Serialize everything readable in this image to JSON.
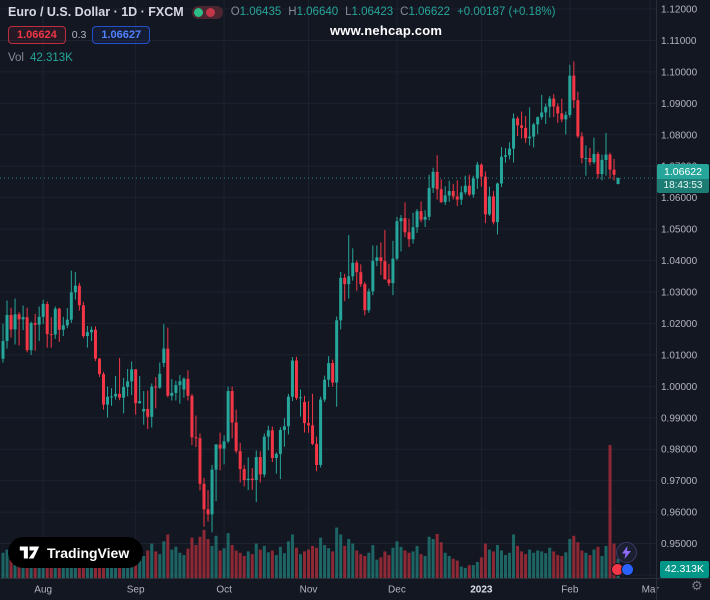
{
  "header": {
    "symbol_title": "Euro / U.S. Dollar · 1D · FXCM",
    "ohlc": {
      "o_label": "O",
      "o": "1.06435",
      "h_label": "H",
      "h": "1.06640",
      "l_label": "L",
      "l": "1.06423",
      "c_label": "C",
      "c": "1.06622",
      "change": "+0.00187 (+0.18%)"
    },
    "sell_price": "1.06624",
    "spread": "0.3",
    "buy_price": "1.06627",
    "vol_label": "Vol",
    "vol_value": "42.313K"
  },
  "watermark": "www.nehcap.com",
  "logo_text": "TradingView",
  "price_label": {
    "price": "1.06622",
    "countdown": "18:43:53"
  },
  "volume_axis_label": "42.313K",
  "icons": [
    "tradingview-logo-icon",
    "lightning-icon",
    "sell-bubble-icon",
    "buy-bubble-icon",
    "gear-icon"
  ],
  "colors": {
    "background": "#131722",
    "grid": "#1c2230",
    "axis_text": "#b2b5be",
    "axis_text_bright": "#dde1e8",
    "border": "#2a2e39",
    "up": "#26a69a",
    "down": "#f23645",
    "vol_up": "rgba(38,166,154,0.55)",
    "vol_down": "rgba(242,54,69,0.55)",
    "price_label_bg": "#26a69a",
    "vol_label_bg": "#009688",
    "sell": "#f23645",
    "buy": "#2962ff"
  },
  "chart_data": {
    "type": "candlestick",
    "title": "Euro / U.S. Dollar",
    "exchange": "FXCM",
    "interval": "1D",
    "last_close": 1.06622,
    "y_axis": {
      "min": 0.94,
      "max": 1.12,
      "tick_step": 0.01,
      "tick_decimals": 5
    },
    "x_ticks": [
      {
        "label": "Aug",
        "index": 10
      },
      {
        "label": "Sep",
        "index": 33
      },
      {
        "label": "Oct",
        "index": 55
      },
      {
        "label": "Nov",
        "index": 76
      },
      {
        "label": "Dec",
        "index": 98
      },
      {
        "label": "2023",
        "index": 119,
        "year": true
      },
      {
        "label": "Feb",
        "index": 141
      },
      {
        "label": "Mar",
        "index": 161
      }
    ],
    "volume_unit": "K",
    "volume_scale_max": 290,
    "candles": [
      [
        1.0088,
        1.0199,
        1.0075,
        1.0144
      ],
      [
        1.0144,
        1.0273,
        1.012,
        1.0227
      ],
      [
        1.0227,
        1.025,
        1.0155,
        1.0181
      ],
      [
        1.0181,
        1.0279,
        1.0133,
        1.0229
      ],
      [
        1.0229,
        1.0236,
        1.013,
        1.0213
      ],
      [
        1.0213,
        1.0257,
        1.0179,
        1.022
      ],
      [
        1.022,
        1.025,
        1.0108,
        1.0115
      ],
      [
        1.0115,
        1.0206,
        1.01,
        1.0201
      ],
      [
        1.0201,
        1.023,
        1.0113,
        1.0196
      ],
      [
        1.0196,
        1.0254,
        1.0144,
        1.0221
      ],
      [
        1.0221,
        1.0275,
        1.0198,
        1.0262
      ],
      [
        1.0262,
        1.027,
        1.0123,
        1.0166
      ],
      [
        1.0166,
        1.022,
        1.0123,
        1.0165
      ],
      [
        1.0165,
        1.0254,
        1.0151,
        1.0247
      ],
      [
        1.0247,
        1.025,
        1.0141,
        1.018
      ],
      [
        1.018,
        1.0221,
        1.016,
        1.0194
      ],
      [
        1.0194,
        1.0249,
        1.0185,
        1.0212
      ],
      [
        1.0212,
        1.0368,
        1.0202,
        1.0299
      ],
      [
        1.0299,
        1.0364,
        1.0276,
        1.032
      ],
      [
        1.032,
        1.0329,
        1.0241,
        1.0258
      ],
      [
        1.0258,
        1.0269,
        1.0154,
        1.016
      ],
      [
        1.016,
        1.0192,
        1.0123,
        1.0172
      ],
      [
        1.0172,
        1.019,
        1.0144,
        1.018
      ],
      [
        1.018,
        1.0191,
        1.008,
        1.0088
      ],
      [
        1.0088,
        1.009,
        1.003,
        1.0039
      ],
      [
        1.0039,
        1.0046,
        0.9926,
        0.9942
      ],
      [
        0.9942,
        0.9999,
        0.9901,
        0.9967
      ],
      [
        0.9967,
        0.9994,
        0.9938,
        0.9968
      ],
      [
        0.9968,
        1.0033,
        0.9958,
        0.9976
      ],
      [
        0.9976,
        1.009,
        0.9956,
        0.9964
      ],
      [
        0.9964,
        1.0027,
        0.9914,
        0.9998
      ],
      [
        0.9998,
        1.0055,
        0.9968,
        1.0016
      ],
      [
        1.0016,
        1.0079,
        0.9972,
        1.0054
      ],
      [
        1.0054,
        1.0055,
        0.991,
        0.9946
      ],
      [
        0.9946,
        1.0033,
        0.9945,
        0.9953
      ],
      [
        0.992,
        0.9985,
        0.9878,
        0.9928
      ],
      [
        0.9928,
        0.9986,
        0.9864,
        0.9903
      ],
      [
        0.9903,
        1.0009,
        0.9869,
        0.9999
      ],
      [
        0.9999,
        1.0029,
        0.993,
        0.9996
      ],
      [
        0.9996,
        1.0076,
        0.9992,
        1.004
      ],
      [
        1.0074,
        1.0198,
        1.0061,
        1.012
      ],
      [
        1.012,
        1.0187,
        0.9965,
        0.997
      ],
      [
        0.997,
        1.0023,
        0.9955,
        0.9979
      ],
      [
        0.9979,
        1.0018,
        0.9955,
        1.0004
      ],
      [
        1.0004,
        1.0036,
        0.9945,
        1.0016
      ],
      [
        0.999,
        1.0029,
        0.9964,
        1.0024
      ],
      [
        1.0024,
        1.0051,
        0.9955,
        0.997
      ],
      [
        0.997,
        0.9976,
        0.9813,
        0.9838
      ],
      [
        0.9838,
        0.9907,
        0.9807,
        0.9835
      ],
      [
        0.9835,
        0.985,
        0.9669,
        0.969
      ],
      [
        0.969,
        0.9709,
        0.9554,
        0.9609
      ],
      [
        0.9609,
        0.967,
        0.957,
        0.9593
      ],
      [
        0.9593,
        0.975,
        0.9536,
        0.9735
      ],
      [
        0.9735,
        0.9816,
        0.9635,
        0.9815
      ],
      [
        0.9815,
        0.9853,
        0.9733,
        0.9802
      ],
      [
        0.9802,
        0.9844,
        0.9752,
        0.9825
      ],
      [
        0.9825,
        0.9999,
        0.9819,
        0.9985
      ],
      [
        0.9985,
        0.9999,
        0.9835,
        0.9885
      ],
      [
        0.9885,
        0.9926,
        0.9787,
        0.9794
      ],
      [
        0.9794,
        0.982,
        0.9694,
        0.9737
      ],
      [
        0.9737,
        0.975,
        0.9682,
        0.9702
      ],
      [
        0.9702,
        0.9774,
        0.967,
        0.9706
      ],
      [
        0.9706,
        0.974,
        0.9671,
        0.9702
      ],
      [
        0.9702,
        0.9796,
        0.9632,
        0.9775
      ],
      [
        0.9775,
        0.9794,
        0.9694,
        0.972
      ],
      [
        0.972,
        0.985,
        0.9711,
        0.984
      ],
      [
        0.984,
        0.9875,
        0.9797,
        0.986
      ],
      [
        0.986,
        0.9872,
        0.9759,
        0.9772
      ],
      [
        0.9772,
        0.979,
        0.9722,
        0.9785
      ],
      [
        0.9785,
        0.987,
        0.9705,
        0.9861
      ],
      [
        0.9861,
        0.9899,
        0.9808,
        0.9873
      ],
      [
        0.9873,
        0.9976,
        0.9847,
        0.9967
      ],
      [
        0.9967,
        1.0093,
        0.9953,
        1.0082
      ],
      [
        1.0082,
        1.0094,
        0.9957,
        0.9963
      ],
      [
        0.9963,
        0.999,
        0.9904,
        0.9965
      ],
      [
        0.995,
        0.997,
        0.9853,
        0.9883
      ],
      [
        0.9883,
        0.9953,
        0.9852,
        0.9876
      ],
      [
        0.9876,
        0.9976,
        0.9813,
        0.9817
      ],
      [
        0.9817,
        0.984,
        0.973,
        0.975
      ],
      [
        0.975,
        0.9967,
        0.9742,
        0.9958
      ],
      [
        0.9958,
        1.0034,
        0.995,
        1.0021
      ],
      [
        1.0021,
        1.0096,
        0.9998,
        1.0074
      ],
      [
        1.0074,
        1.0085,
        0.9999,
        1.0012
      ],
      [
        1.0012,
        1.0222,
        0.9935,
        1.021
      ],
      [
        1.021,
        1.0364,
        1.0181,
        1.0345
      ],
      [
        1.0345,
        1.0358,
        1.0271,
        1.0325
      ],
      [
        1.0325,
        1.0481,
        1.0279,
        1.035
      ],
      [
        1.035,
        1.0439,
        1.0336,
        1.0393
      ],
      [
        1.0393,
        1.04,
        1.0304,
        1.0363
      ],
      [
        1.0363,
        1.0388,
        1.0316,
        1.0325
      ],
      [
        1.0325,
        1.0332,
        1.0226,
        1.0242
      ],
      [
        1.0242,
        1.0311,
        1.0234,
        1.0302
      ],
      [
        1.0302,
        1.0448,
        1.029,
        1.0399
      ],
      [
        1.0399,
        1.0448,
        1.0382,
        1.041
      ],
      [
        1.041,
        1.0458,
        1.0354,
        1.0398
      ],
      [
        1.0398,
        1.0497,
        1.034,
        1.034
      ],
      [
        1.034,
        1.039,
        1.0319,
        1.0328
      ],
      [
        1.0328,
        1.0463,
        1.029,
        1.0406
      ],
      [
        1.0406,
        1.0539,
        1.04,
        1.0525
      ],
      [
        1.0525,
        1.0545,
        1.0429,
        1.0535
      ],
      [
        1.0535,
        1.0585,
        1.0475,
        1.049
      ],
      [
        1.049,
        1.0533,
        1.0443,
        1.0468
      ],
      [
        1.0468,
        1.0552,
        1.0454,
        1.0506
      ],
      [
        1.0506,
        1.0564,
        1.0488,
        1.0557
      ],
      [
        1.0557,
        1.0588,
        1.0522,
        1.053
      ],
      [
        1.053,
        1.056,
        1.0507,
        1.0539
      ],
      [
        1.0539,
        1.0673,
        1.0528,
        1.0631
      ],
      [
        1.0631,
        1.0695,
        1.0615,
        1.0682
      ],
      [
        1.0682,
        1.0735,
        1.0594,
        1.0627
      ],
      [
        1.0627,
        1.0658,
        1.0583,
        1.0586
      ],
      [
        1.0586,
        1.0636,
        1.0577,
        1.0607
      ],
      [
        1.0607,
        1.0654,
        1.0587,
        1.0621
      ],
      [
        1.0621,
        1.0644,
        1.0594,
        1.0604
      ],
      [
        1.0604,
        1.0655,
        1.0573,
        1.0594
      ],
      [
        1.0594,
        1.0637,
        1.0577,
        1.0617
      ],
      [
        1.0617,
        1.067,
        1.061,
        1.0638
      ],
      [
        1.0638,
        1.0673,
        1.0605,
        1.061
      ],
      [
        1.061,
        1.067,
        1.06,
        1.0661
      ],
      [
        1.0661,
        1.0714,
        1.0628,
        1.0705
      ],
      [
        1.0705,
        1.0709,
        1.0635,
        1.0667
      ],
      [
        1.0667,
        1.0683,
        1.0519,
        1.0547
      ],
      [
        1.0547,
        1.0635,
        1.0542,
        1.0604
      ],
      [
        1.0604,
        1.0621,
        1.0515,
        1.0522
      ],
      [
        1.0522,
        1.0648,
        1.0483,
        1.0645
      ],
      [
        1.0645,
        1.0761,
        1.0634,
        1.073
      ],
      [
        1.073,
        1.0758,
        1.0711,
        1.0735
      ],
      [
        1.0735,
        1.0776,
        1.0722,
        1.0756
      ],
      [
        1.0756,
        1.0868,
        1.0712,
        1.0852
      ],
      [
        1.0852,
        1.0858,
        1.0796,
        1.083
      ],
      [
        1.083,
        1.0874,
        1.0788,
        1.0822
      ],
      [
        1.0822,
        1.086,
        1.0774,
        1.0789
      ],
      [
        1.0789,
        1.0887,
        1.0766,
        1.0794
      ],
      [
        1.0794,
        1.0838,
        1.076,
        1.0833
      ],
      [
        1.0833,
        1.0858,
        1.0802,
        1.0856
      ],
      [
        1.0856,
        1.0927,
        1.0848,
        1.0871
      ],
      [
        1.0871,
        1.0899,
        1.0834,
        1.0889
      ],
      [
        1.0889,
        1.0923,
        1.0855,
        1.0915
      ],
      [
        1.0915,
        1.0929,
        1.0856,
        1.089
      ],
      [
        1.089,
        1.09,
        1.0838,
        1.0868
      ],
      [
        1.0868,
        1.0915,
        1.084,
        1.0849
      ],
      [
        1.0849,
        1.0874,
        1.0801,
        1.0863
      ],
      [
        1.0863,
        1.1023,
        1.0855,
        1.0988
      ],
      [
        1.0988,
        1.1033,
        1.0885,
        1.091
      ],
      [
        1.091,
        1.0937,
        1.079,
        1.0795
      ],
      [
        1.0795,
        1.0808,
        1.0709,
        1.0726
      ],
      [
        1.0726,
        1.0766,
        1.067,
        1.0726
      ],
      [
        1.0726,
        1.0758,
        1.0703,
        1.0713
      ],
      [
        1.0713,
        1.0791,
        1.0707,
        1.0739
      ],
      [
        1.0739,
        1.0746,
        1.0661,
        1.0675
      ],
      [
        1.0675,
        1.0737,
        1.0655,
        1.072
      ],
      [
        1.072,
        1.0806,
        1.067,
        1.0737
      ],
      [
        1.0737,
        1.0743,
        1.0661,
        1.0689
      ],
      [
        1.0689,
        1.0723,
        1.0655,
        1.0673
      ],
      [
        1.06435,
        1.0664,
        1.06423,
        1.06622
      ]
    ],
    "volumes": [
      55,
      62,
      58,
      70,
      48,
      40,
      66,
      52,
      45,
      38,
      60,
      72,
      55,
      58,
      52,
      38,
      45,
      85,
      70,
      62,
      58,
      48,
      42,
      66,
      55,
      78,
      60,
      52,
      48,
      56,
      44,
      50,
      62,
      70,
      55,
      48,
      60,
      75,
      58,
      52,
      80,
      95,
      62,
      68,
      55,
      50,
      64,
      88,
      72,
      90,
      105,
      85,
      70,
      92,
      60,
      65,
      98,
      72,
      60,
      55,
      48,
      58,
      52,
      75,
      62,
      70,
      56,
      60,
      50,
      68,
      54,
      80,
      95,
      66,
      52,
      58,
      62,
      70,
      66,
      88,
      72,
      65,
      58,
      110,
      95,
      70,
      85,
      75,
      60,
      52,
      48,
      55,
      72,
      40,
      45,
      58,
      50,
      66,
      80,
      68,
      60,
      55,
      58,
      70,
      52,
      48,
      90,
      85,
      96,
      78,
      55,
      48,
      42,
      38,
      25,
      22,
      28,
      28,
      35,
      45,
      75,
      62,
      58,
      72,
      60,
      50,
      55,
      95,
      70,
      58,
      52,
      62,
      55,
      60,
      58,
      54,
      66,
      58,
      50,
      48,
      56,
      85,
      92,
      78,
      60,
      55,
      50,
      62,
      68,
      48,
      70,
      290,
      75,
      42.313
    ]
  }
}
